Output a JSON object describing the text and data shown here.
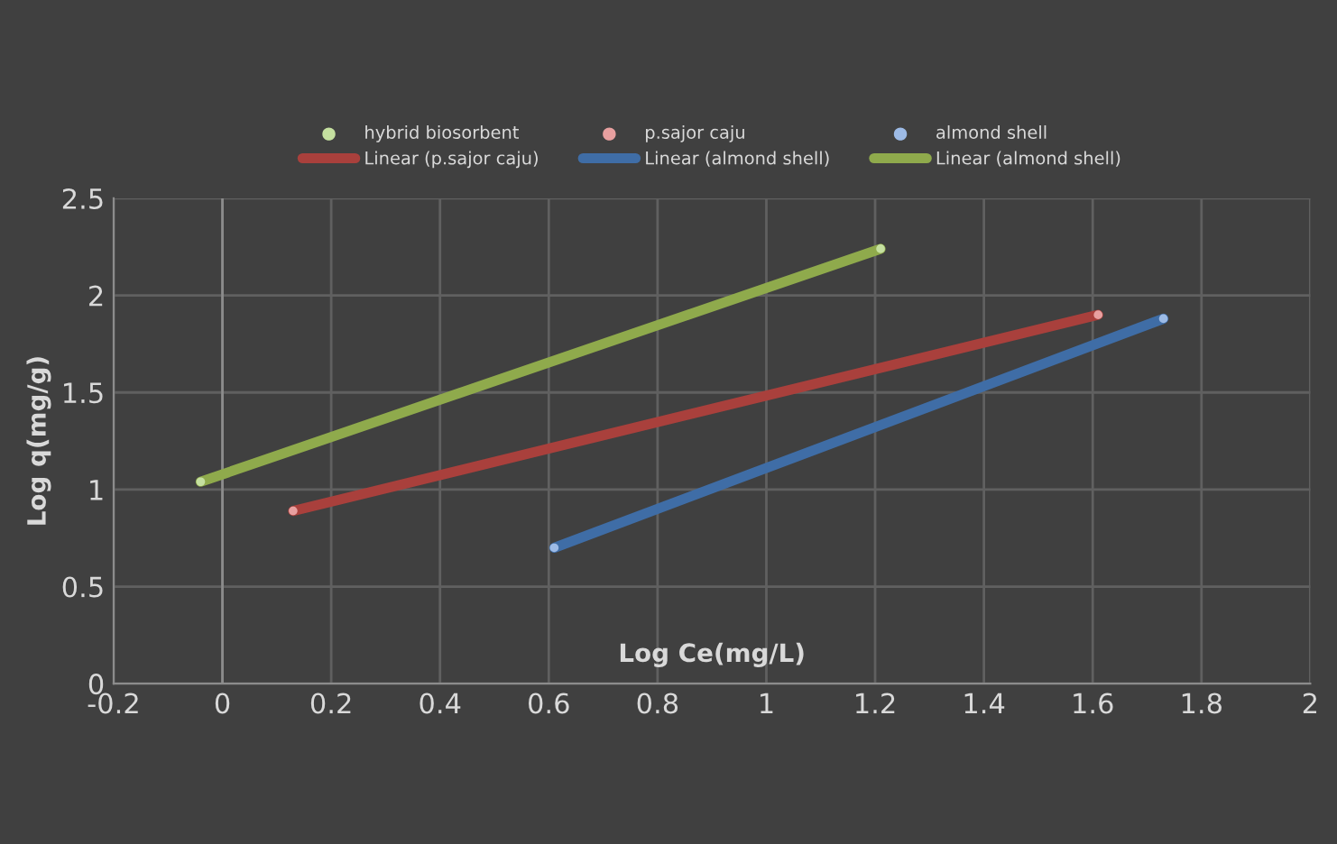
{
  "chart_data": {
    "type": "line",
    "xlabel": "Log Ce(mg/L)",
    "ylabel": "Log q(mg/g)",
    "xlim": [
      -0.2,
      2
    ],
    "xticks": [
      -0.2,
      0,
      0.2,
      0.4,
      0.6,
      0.8,
      1,
      1.2,
      1.4,
      1.6,
      1.8,
      2
    ],
    "ylim": [
      0,
      2.5
    ],
    "yticks": [
      0,
      0.5,
      1,
      1.5,
      2,
      2.5
    ],
    "grid": true,
    "legend": "top",
    "line_style": "solid",
    "series": [
      {
        "type": "scatter",
        "name": "hybrid biosorbent",
        "color": "#c5e0a0",
        "marker": "circle",
        "x": [
          -0.04,
          1.21
        ],
        "values": [
          1.04,
          2.24
        ]
      },
      {
        "type": "scatter",
        "name": "p.sajor caju",
        "color": "#e8a0a0",
        "marker": "circle",
        "x": [
          0.13,
          1.61
        ],
        "values": [
          0.89,
          1.9
        ]
      },
      {
        "type": "scatter",
        "name": "almond shell",
        "color": "#9dbbe6",
        "marker": "circle",
        "x": [
          0.61,
          1.73
        ],
        "values": [
          0.7,
          1.88
        ]
      },
      {
        "type": "line",
        "name": "Linear (p.sajor caju)",
        "color": "#a9403c",
        "x": [
          0.13,
          1.61
        ],
        "values": [
          0.89,
          1.9
        ]
      },
      {
        "type": "line",
        "name": "Linear (almond shell)",
        "color": "#3f6da6",
        "x": [
          0.61,
          1.73
        ],
        "values": [
          0.7,
          1.88
        ]
      },
      {
        "name": "Linear (almond shell)",
        "color": "#8faa4c",
        "x": [
          -0.04,
          1.21
        ],
        "values": [
          1.04,
          2.24
        ]
      }
    ]
  }
}
